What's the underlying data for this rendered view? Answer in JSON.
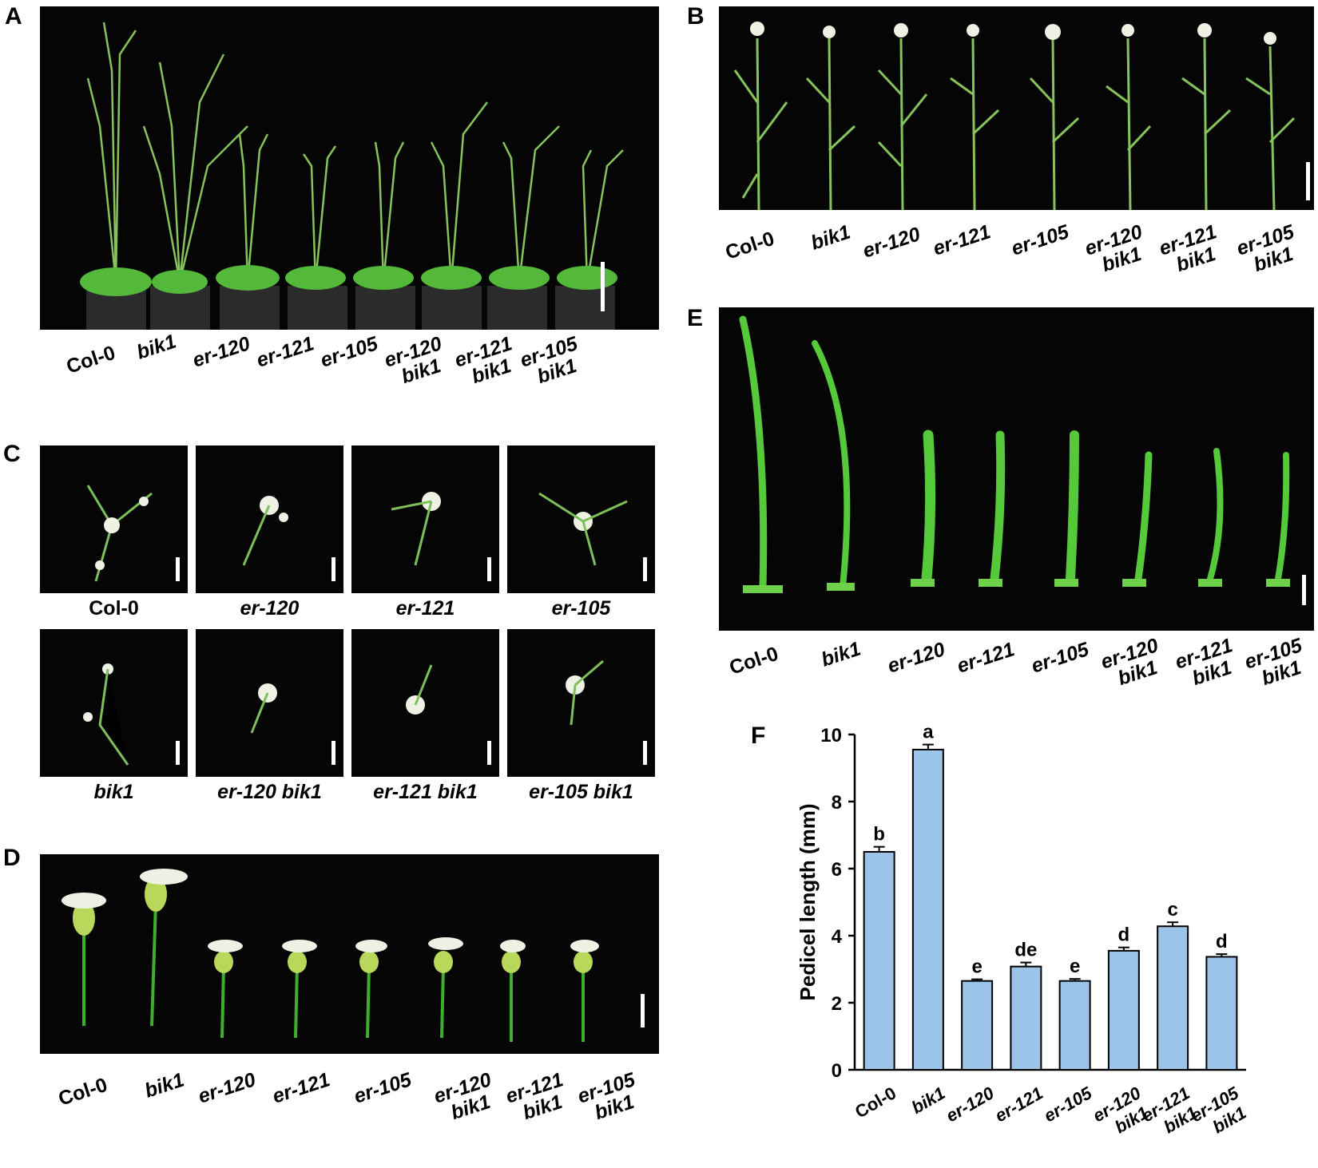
{
  "panels": {
    "A": "A",
    "B": "B",
    "C": "C",
    "D": "D",
    "E": "E",
    "F": "F"
  },
  "genotypes": [
    {
      "l1": "Col-0",
      "l2": "",
      "italic": false
    },
    {
      "l1": "bik1",
      "l2": "",
      "italic": true
    },
    {
      "l1": "er-120",
      "l2": "",
      "italic": true
    },
    {
      "l1": "er-121",
      "l2": "",
      "italic": true
    },
    {
      "l1": "er-105",
      "l2": "",
      "italic": true
    },
    {
      "l1": "er-120",
      "l2": "bik1",
      "italic": true
    },
    {
      "l1": "er-121",
      "l2": "bik1",
      "italic": true
    },
    {
      "l1": "er-105",
      "l2": "bik1",
      "italic": true
    }
  ],
  "panel_c_labels": {
    "top": [
      "Col-0",
      "er-120",
      "er-121",
      "er-105"
    ],
    "bottom": [
      "bik1",
      "er-120 bik1",
      "er-121 bik1",
      "er-105 bik1"
    ]
  },
  "colors": {
    "photo_bg": "#050505",
    "plant_green": "#5fc93a",
    "flower_white": "#eef2e4",
    "bar_fill": "#9cc3e8",
    "bar_stroke": "#000000"
  },
  "chart_data": {
    "type": "bar",
    "ylabel": "Pedicel length (mm)",
    "xlabel": "",
    "ylim": [
      0,
      10
    ],
    "yticks": [
      0,
      2,
      4,
      6,
      8,
      10
    ],
    "categories": [
      "Col-0",
      "bik1",
      "er-120",
      "er-121",
      "er-105",
      "er-120 bik1",
      "er-121 bik1",
      "er-105 bik1"
    ],
    "values": [
      6.5,
      9.55,
      2.65,
      3.08,
      2.65,
      3.55,
      4.28,
      3.37
    ],
    "errors": [
      0.15,
      0.15,
      0.05,
      0.12,
      0.06,
      0.1,
      0.12,
      0.08
    ],
    "significance": [
      "b",
      "a",
      "e",
      "de",
      "e",
      "d",
      "c",
      "d"
    ]
  }
}
